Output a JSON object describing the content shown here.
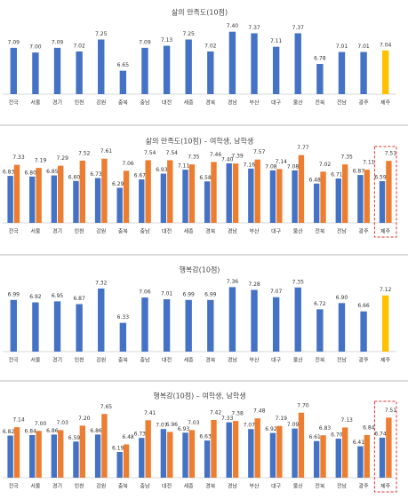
{
  "chart_data": [
    {
      "type": "bar",
      "title": "삶의 만족도(10점)",
      "categories": [
        "전국",
        "서울",
        "경기",
        "인천",
        "강원",
        "충북",
        "충남",
        "대전",
        "세종",
        "경북",
        "경남",
        "부산",
        "대구",
        "울산",
        "전북",
        "전남",
        "광주",
        "제주"
      ],
      "values": [
        7.09,
        7.0,
        7.09,
        7.02,
        7.25,
        6.65,
        7.09,
        7.13,
        7.25,
        7.02,
        7.4,
        7.37,
        7.11,
        7.37,
        6.78,
        7.01,
        7.01,
        7.04
      ],
      "value_labels": [
        "7.09",
        "7.00",
        "7.09",
        "7.02",
        "7.25",
        "6.65",
        "7.09",
        "7.13",
        "7.25",
        "7.02",
        "7.40",
        "7.37",
        "7.11",
        "7.37",
        "6.78",
        "7.01",
        "7.01",
        "7.04"
      ],
      "colors": [
        "#4472c4",
        "#4472c4",
        "#4472c4",
        "#4472c4",
        "#4472c4",
        "#4472c4",
        "#4472c4",
        "#4472c4",
        "#4472c4",
        "#4472c4",
        "#4472c4",
        "#4472c4",
        "#4472c4",
        "#4472c4",
        "#4472c4",
        "#4472c4",
        "#4472c4",
        "#ffc000"
      ],
      "ylim": [
        6.2,
        7.6
      ]
    },
    {
      "type": "bar",
      "title": "삶의 만족도(10점) – 여학생, 남학생",
      "categories": [
        "전국",
        "서울",
        "경기",
        "인천",
        "강원",
        "충북",
        "충남",
        "대전",
        "세종",
        "경북",
        "경남",
        "부산",
        "대구",
        "울산",
        "전북",
        "전남",
        "광주",
        "제주"
      ],
      "series": [
        {
          "color": "#4472c4",
          "values": [
            6.83,
            6.8,
            6.85,
            6.6,
            6.73,
            6.29,
            6.67,
            6.93,
            7.11,
            6.58,
            7.4,
            7.16,
            7.08,
            7.08,
            6.48,
            6.71,
            6.87,
            6.59
          ],
          "value_labels": [
            "6.83",
            "6.80",
            "6.85",
            "6.60",
            "6.73",
            "6.29",
            "6.67",
            "6.93",
            "7.11",
            "6.58",
            "7.40",
            "7.16",
            "7.08",
            "7.08",
            "6.48",
            "6.71",
            "6.87",
            "6.59"
          ]
        },
        {
          "color": "#ed7d31",
          "values": [
            7.33,
            7.19,
            7.29,
            7.52,
            7.61,
            7.06,
            7.54,
            7.54,
            7.35,
            7.46,
            7.39,
            7.57,
            7.14,
            7.77,
            7.02,
            7.35,
            7.11,
            7.51
          ],
          "value_labels": [
            "7.33",
            "7.19",
            "7.29",
            "7.52",
            "7.61",
            "7.06",
            "7.54",
            "7.54",
            "7.35",
            "7.46",
            "7.39",
            "7.57",
            "7.14",
            "7.77",
            "7.02",
            "7.35",
            "7.11",
            "7.51"
          ]
        }
      ],
      "ylim": [
        4.7,
        8.0
      ],
      "box_last": true
    },
    {
      "type": "bar",
      "title": "행복감(10점)",
      "categories": [
        "전국",
        "서울",
        "경기",
        "인천",
        "강원",
        "충북",
        "충남",
        "대전",
        "세종",
        "경북",
        "경남",
        "부산",
        "대구",
        "울산",
        "전북",
        "전남",
        "광주",
        "제주"
      ],
      "values": [
        6.99,
        6.92,
        6.95,
        6.87,
        7.32,
        6.33,
        7.06,
        7.01,
        6.99,
        6.99,
        7.36,
        7.28,
        7.07,
        7.35,
        6.72,
        6.9,
        6.66,
        7.12
      ],
      "value_labels": [
        "6.99",
        "6.92",
        "6.95",
        "6.87",
        "7.32",
        "6.33",
        "7.06",
        "7.01",
        "6.99",
        "6.99",
        "7.36",
        "7.28",
        "7.07",
        "7.35",
        "6.72",
        "6.90",
        "6.66",
        "7.12"
      ],
      "colors": [
        "#4472c4",
        "#4472c4",
        "#4472c4",
        "#4472c4",
        "#4472c4",
        "#4472c4",
        "#4472c4",
        "#4472c4",
        "#4472c4",
        "#4472c4",
        "#4472c4",
        "#4472c4",
        "#4472c4",
        "#4472c4",
        "#4472c4",
        "#4472c4",
        "#4472c4",
        "#ffc000"
      ],
      "ylim": [
        5.5,
        7.6
      ]
    },
    {
      "type": "bar",
      "title": "행복감(10점) – 여학생, 남학생",
      "categories": [
        "전국",
        "서울",
        "경기",
        "인천",
        "강원",
        "충북",
        "충남",
        "대전",
        "세종",
        "경북",
        "경남",
        "부산",
        "대구",
        "울산",
        "전북",
        "전남",
        "광주",
        "제주"
      ],
      "series": [
        {
          "color": "#4472c4",
          "values": [
            6.82,
            6.84,
            6.86,
            6.59,
            6.86,
            6.19,
            6.73,
            7.07,
            6.93,
            6.63,
            7.33,
            7.07,
            6.92,
            7.09,
            6.61,
            6.7,
            6.41,
            6.74
          ],
          "value_labels": [
            "6.82",
            "6.84",
            "6.86",
            "6.59",
            "6.86",
            "6.19",
            "6.73",
            "7.07",
            "6.93",
            "6.63",
            "7.33",
            "7.07",
            "6.92",
            "7.09",
            "6.61",
            "6.70",
            "6.41",
            "6.74"
          ]
        },
        {
          "color": "#ed7d31",
          "values": [
            7.14,
            7.0,
            7.03,
            7.2,
            7.65,
            6.48,
            7.41,
            6.96,
            7.03,
            7.42,
            7.38,
            7.48,
            7.19,
            7.7,
            6.83,
            7.13,
            6.84,
            7.51
          ],
          "value_labels": [
            "7.14",
            "7.00",
            "7.03",
            "7.20",
            "7.65",
            "6.48",
            "7.41",
            "6.96",
            "7.03",
            "7.42",
            "7.38",
            "7.48",
            "7.19",
            "7.70",
            "6.83",
            "7.13",
            "6.84",
            "7.51"
          ]
        }
      ],
      "ylim": [
        5.2,
        8.0
      ],
      "box_last": true
    }
  ]
}
